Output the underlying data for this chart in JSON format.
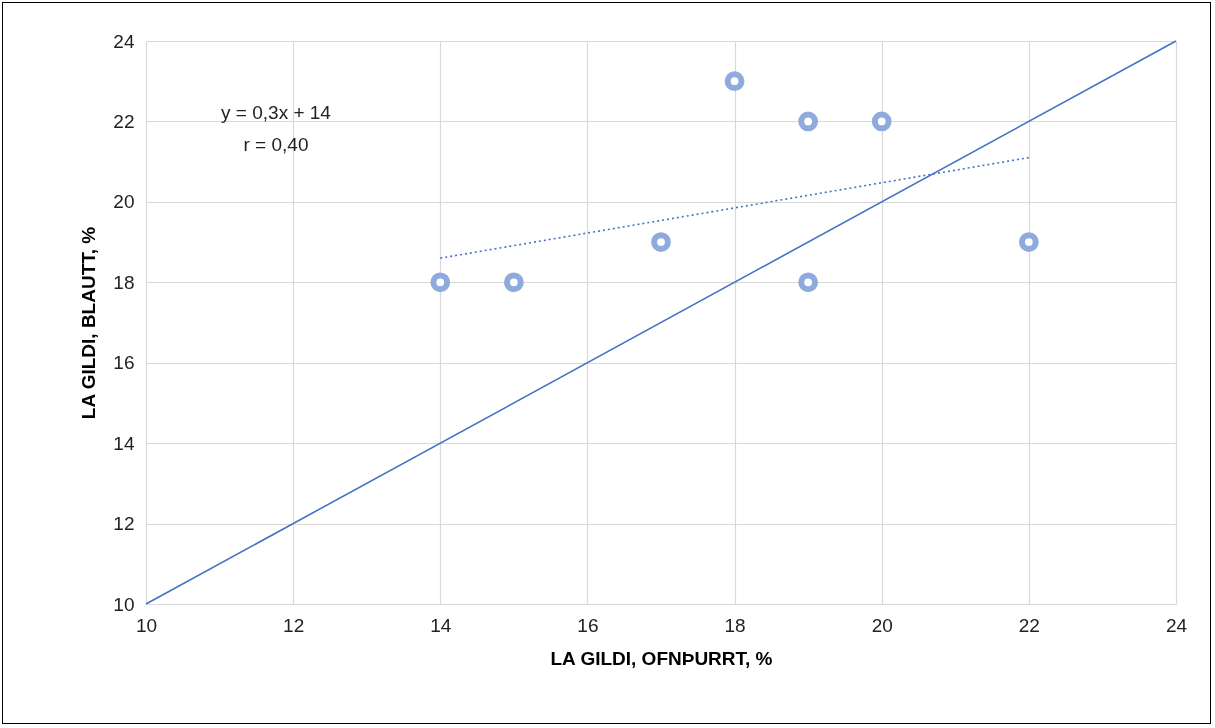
{
  "chart_data": {
    "type": "scatter",
    "xlabel": "LA GILDI, OFNÞURRT, %",
    "ylabel": "LA GILDI, BLAUTT, %",
    "xlim": [
      10,
      24
    ],
    "ylim": [
      10,
      24
    ],
    "xticks": [
      10,
      12,
      14,
      16,
      18,
      20,
      22,
      24
    ],
    "yticks": [
      10,
      12,
      14,
      16,
      18,
      20,
      22,
      24
    ],
    "grid": true,
    "annotations": [
      "y = 0,3x + 14",
      "r = 0,40"
    ],
    "series": [
      {
        "color": "#8faadc",
        "marker": "circle",
        "x": [
          14,
          15,
          17,
          18,
          19,
          19,
          20,
          22
        ],
        "values": [
          18,
          18,
          19,
          23,
          22,
          18,
          22,
          19
        ]
      },
      {
        "type": "line",
        "color": "#4472c4",
        "line_style": "dotted",
        "x": [
          14,
          22
        ],
        "values": [
          18.6,
          21.1
        ]
      },
      {
        "type": "line",
        "color": "#4472c4",
        "line_style": "solid",
        "x": [
          10,
          24
        ],
        "values": [
          10,
          24
        ]
      }
    ]
  }
}
